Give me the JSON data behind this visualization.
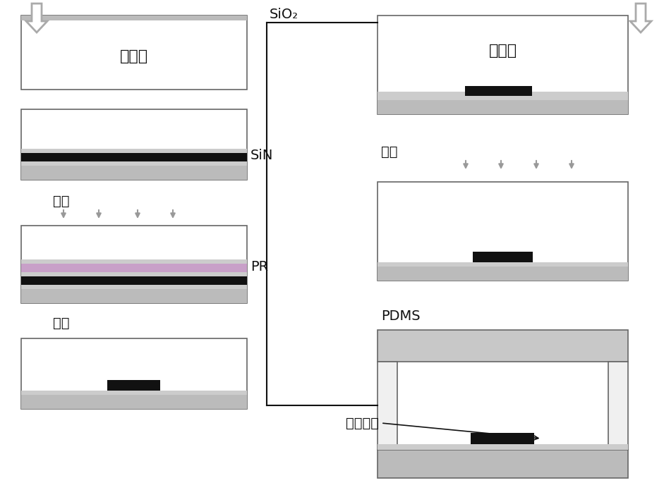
{
  "bg_color": "#ffffff",
  "border_color": "#666666",
  "panel_fill": "#ffffff",
  "gray_layer": "#bbbbbb",
  "dark_gray_layer": "#888888",
  "black_layer": "#111111",
  "pr_layer": "#c8a0c8",
  "pdms_color": "#c8c8c8",
  "arrow_gray": "#aaaaaa",
  "connector_color": "#111111",
  "text_color": "#111111",
  "labels": {
    "SiO2": "SiO₂",
    "SiN": "SiN",
    "PR": "PR",
    "guangke": "光刻",
    "fushi": "腑蚀",
    "shangbaoceng": "上包层",
    "PDMS": "PDMS",
    "weiliutongdao": "微流通道",
    "guichendi": "硅衬底"
  },
  "fs": 14,
  "fs_small": 12
}
